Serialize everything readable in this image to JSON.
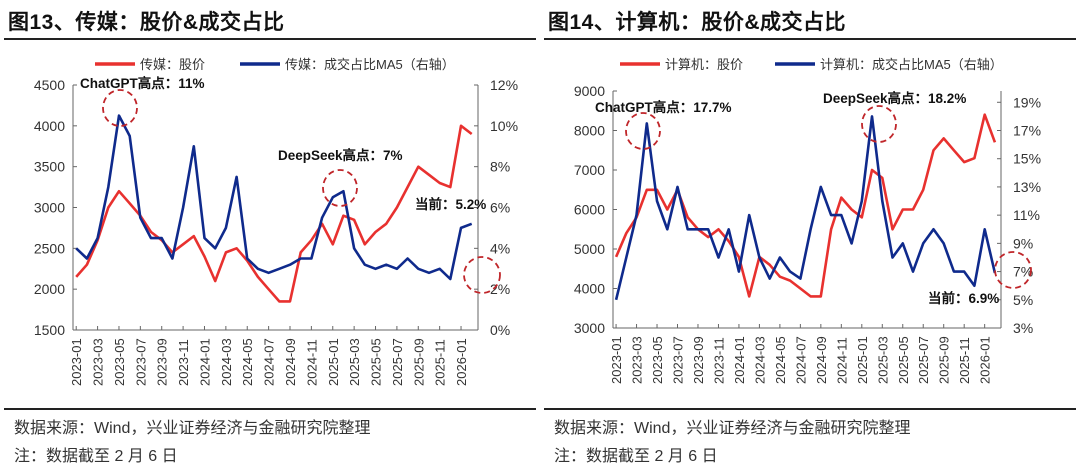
{
  "chart_data": [
    {
      "type": "line",
      "title": "图13、传媒：股价&成交占比",
      "x": [
        "2023-01",
        "2023-02",
        "2023-03",
        "2023-04",
        "2023-05",
        "2023-06",
        "2023-07",
        "2023-08",
        "2023-09",
        "2023-10",
        "2023-11",
        "2023-12",
        "2024-01",
        "2024-02",
        "2024-03",
        "2024-04",
        "2024-05",
        "2024-06",
        "2024-07",
        "2024-08",
        "2024-09",
        "2024-10",
        "2024-11",
        "2024-12",
        "2025-01",
        "2025-02",
        "2025-03",
        "2025-04",
        "2025-05",
        "2025-06",
        "2025-07",
        "2025-08",
        "2025-09",
        "2025-10",
        "2025-11",
        "2025-12",
        "2026-01",
        "2026-02"
      ],
      "x_tick_labels": [
        "2023-01",
        "2023-03",
        "2023-05",
        "2023-07",
        "2023-09",
        "2023-11",
        "2024-01",
        "2024-03",
        "2024-05",
        "2024-07",
        "2024-09",
        "2024-11",
        "2025-01",
        "2025-03",
        "2025-05",
        "2025-07",
        "2025-09",
        "2025-11",
        "2026-01"
      ],
      "left_axis": {
        "ylim": [
          1500,
          4500
        ],
        "ticks": [
          "1500",
          "2000",
          "2500",
          "3000",
          "3500",
          "4000",
          "4500"
        ]
      },
      "right_axis": {
        "ylim": [
          0,
          12
        ],
        "ticks": [
          "0%",
          "2%",
          "4%",
          "6%",
          "8%",
          "10%",
          "12%"
        ]
      },
      "series": [
        {
          "name": "传媒：股价",
          "axis": "left",
          "color": "#e8312f",
          "values": [
            2150,
            2300,
            2600,
            3000,
            3200,
            3050,
            2900,
            2700,
            2600,
            2450,
            2550,
            2650,
            2400,
            2100,
            2450,
            2500,
            2350,
            2150,
            2000,
            1850,
            1850,
            2450,
            2600,
            2800,
            2550,
            2900,
            2850,
            2550,
            2700,
            2800,
            3000,
            3250,
            3500,
            3400,
            3300,
            3250,
            4000,
            3900
          ]
        },
        {
          "name": "传媒：成交占比MA5（右轴）",
          "axis": "right",
          "color": "#0f2a8c",
          "values": [
            4.0,
            3.5,
            4.5,
            7.0,
            10.5,
            9.5,
            5.5,
            4.5,
            4.5,
            3.5,
            6.0,
            9.0,
            4.5,
            4.0,
            5.0,
            7.5,
            3.5,
            3.0,
            2.8,
            3.0,
            3.2,
            3.5,
            3.5,
            5.5,
            6.5,
            6.8,
            4.0,
            3.2,
            3.0,
            3.2,
            3.0,
            3.5,
            3.0,
            2.8,
            3.0,
            2.5,
            5.0,
            5.2
          ]
        }
      ],
      "annotations": [
        "ChatGPT高点：11%",
        "DeepSeek高点：7%",
        "当前：5.2%"
      ],
      "legend": "top"
    },
    {
      "type": "line",
      "title": "图14、计算机：股价&成交占比",
      "x": [
        "2023-01",
        "2023-02",
        "2023-03",
        "2023-04",
        "2023-05",
        "2023-06",
        "2023-07",
        "2023-08",
        "2023-09",
        "2023-10",
        "2023-11",
        "2023-12",
        "2024-01",
        "2024-02",
        "2024-03",
        "2024-04",
        "2024-05",
        "2024-06",
        "2024-07",
        "2024-08",
        "2024-09",
        "2024-10",
        "2024-11",
        "2024-12",
        "2025-01",
        "2025-02",
        "2025-03",
        "2025-04",
        "2025-05",
        "2025-06",
        "2025-07",
        "2025-08",
        "2025-09",
        "2025-10",
        "2025-11",
        "2025-12",
        "2026-01",
        "2026-02"
      ],
      "x_tick_labels": [
        "2023-01",
        "2023-03",
        "2023-05",
        "2023-07",
        "2023-09",
        "2023-11",
        "2024-01",
        "2024-03",
        "2024-05",
        "2024-07",
        "2024-09",
        "2024-11",
        "2025-01",
        "2025-03",
        "2025-05",
        "2025-07",
        "2025-09",
        "2025-11",
        "2026-01"
      ],
      "left_axis": {
        "ylim": [
          3000,
          9000
        ],
        "ticks": [
          "3000",
          "4000",
          "5000",
          "6000",
          "7000",
          "8000",
          "9000"
        ]
      },
      "right_axis": {
        "ylim": [
          3,
          19.8
        ],
        "ticks": [
          "3%",
          "5%",
          "7%",
          "9%",
          "11%",
          "13%",
          "15%",
          "17%",
          "19%"
        ]
      },
      "series": [
        {
          "name": "计算机：股价",
          "axis": "left",
          "color": "#e8312f",
          "values": [
            4800,
            5400,
            5800,
            6500,
            6500,
            6000,
            6500,
            5800,
            5500,
            5300,
            5500,
            5200,
            4800,
            3800,
            4800,
            4600,
            4300,
            4200,
            4000,
            3800,
            3800,
            5500,
            6300,
            6000,
            5800,
            7000,
            6800,
            5500,
            6000,
            6000,
            6500,
            7500,
            7800,
            7500,
            7200,
            7300,
            8400,
            7700
          ]
        },
        {
          "name": "计算机：成交占比MA5（右轴）",
          "axis": "right",
          "color": "#0f2a8c",
          "values": [
            5,
            8,
            11,
            17.5,
            12,
            10,
            13,
            10,
            10,
            10,
            8,
            10,
            7,
            11,
            8,
            6.5,
            8,
            7,
            6.5,
            10,
            13,
            11,
            11,
            9,
            12,
            18,
            12,
            8,
            9,
            7,
            9,
            10,
            9,
            7,
            7,
            6,
            10,
            6.9
          ]
        }
      ],
      "annotations": [
        "ChatGPT高点：17.7%",
        "DeepSeek高点：18.2%",
        "当前：6.9%"
      ],
      "legend": "top"
    }
  ],
  "footer": {
    "source": "数据来源：Wind，兴业证券经济与金融研究院整理",
    "note": "注：数据截至 2 月 6 日"
  }
}
